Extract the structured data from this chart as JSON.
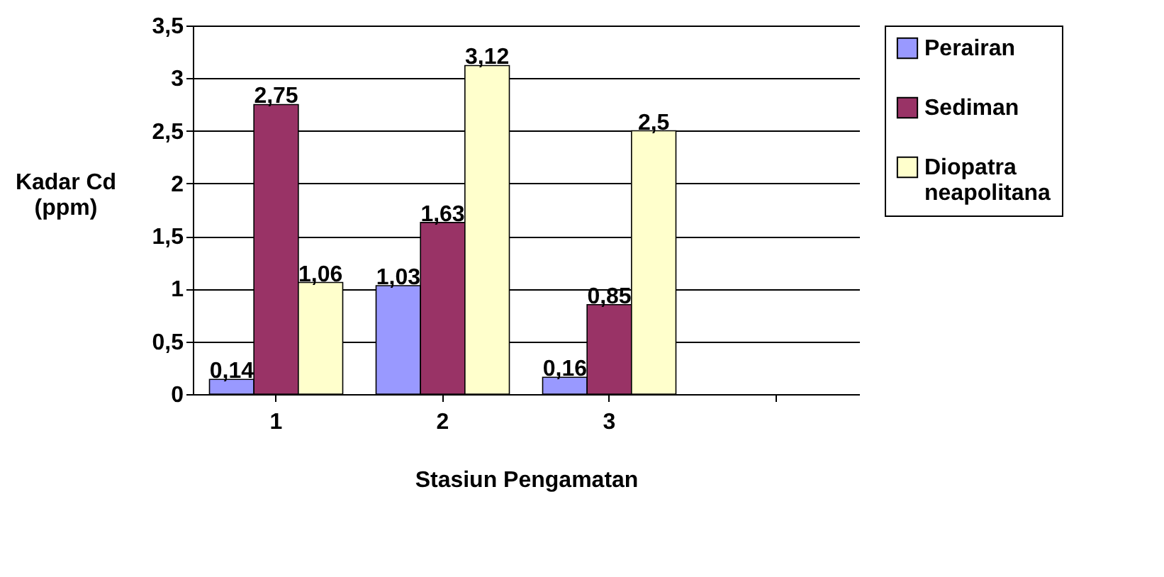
{
  "chart_data": {
    "type": "bar",
    "xlabel": "Stasiun Pengamatan",
    "ylabel": "Kadar Cd (ppm)",
    "categories": [
      "1",
      "2",
      "3",
      null
    ],
    "series": [
      {
        "name": "Perairan",
        "color": "#9999ff",
        "values": [
          0.14,
          1.03,
          0.16,
          null
        ],
        "value_labels": [
          "0,14",
          "1,03",
          "0,16",
          null
        ]
      },
      {
        "name": "Sediman",
        "color": "#993366",
        "values": [
          2.75,
          1.63,
          0.85,
          null
        ],
        "value_labels": [
          "2,75",
          "1,63",
          "0,85",
          null
        ]
      },
      {
        "name": "Diopatra neapolitana",
        "color": "#ffffcc",
        "values": [
          1.06,
          3.12,
          2.5,
          null
        ],
        "value_labels": [
          "1,06",
          "3,12",
          "2,5",
          null
        ]
      }
    ],
    "ylim": [
      0,
      3.5
    ],
    "yticks": [
      0,
      {
        "value": 0.5,
        "label": "0,5"
      },
      1,
      {
        "value": 1.5,
        "label": "1,5"
      },
      2,
      {
        "value": 2.5,
        "label": "2,5"
      },
      3,
      {
        "value": 3.5,
        "label": "3,5"
      }
    ],
    "grid": "y",
    "legend": "right"
  }
}
